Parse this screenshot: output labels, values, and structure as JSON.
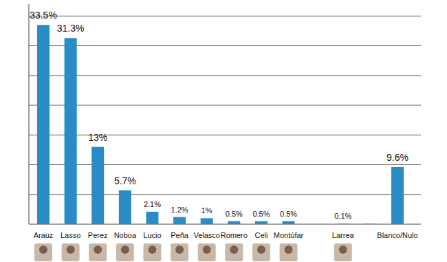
{
  "chart_data": {
    "type": "bar",
    "categories": [
      "Arauz",
      "Lasso",
      "Perez",
      "Noboa",
      "Lucio",
      "Peña",
      "Velasco",
      "Romero",
      "Celi",
      "Montúfar",
      null,
      "Larrea",
      null,
      "Blanco/Nulo"
    ],
    "values": [
      33.5,
      31.3,
      13,
      5.7,
      2.1,
      1.2,
      1,
      0.5,
      0.5,
      0.5,
      0,
      0.1,
      0.1,
      9.6
    ],
    "value_labels": [
      "33.5%",
      "31.3%",
      "13%",
      "5.7%",
      "2.1%",
      "1.2%",
      "1%",
      "0.5%",
      "0.5%",
      "0.5%",
      null,
      "0.1%",
      null,
      "9.6%"
    ],
    "data_labels": true,
    "color": "#2a8cc4",
    "ylim": [
      0,
      37
    ],
    "yticks": [
      0,
      5,
      10,
      15,
      20,
      25,
      30,
      35
    ],
    "grid": true,
    "tick_labels": "x"
  }
}
